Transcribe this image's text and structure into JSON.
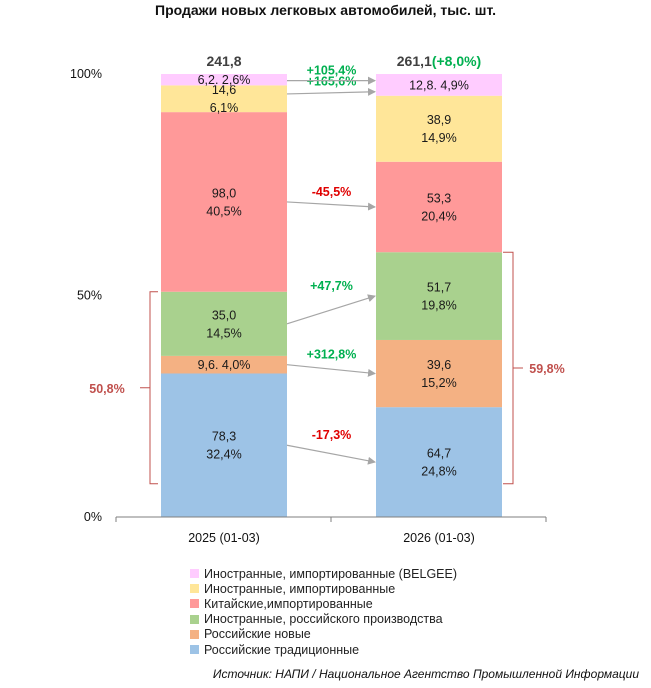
{
  "chart_data": {
    "type": "bar",
    "stacked": "percent",
    "title": "Продажи новых легковых автомобилей, тыс. шт.",
    "categories": [
      "2025 (01-03)",
      "2026 (01-03)"
    ],
    "yticks": [
      "0%",
      "50%",
      "100%"
    ],
    "ylim": [
      0,
      100
    ],
    "totals": [
      {
        "value": "241,8"
      },
      {
        "value": "261,1",
        "change": "(+8,0%)"
      }
    ],
    "series": [
      {
        "name": "Российские традиционные",
        "color": "#9DC3E6",
        "values": [
          78.3,
          64.7
        ],
        "shares": [
          32.4,
          24.8
        ],
        "labels": [
          [
            "78,3",
            "32,4%"
          ],
          [
            "64,7",
            "24,8%"
          ]
        ],
        "change": "-17,3%",
        "change_color": "#E00000"
      },
      {
        "name": "Российские новые",
        "color": "#F4B183",
        "values": [
          9.6,
          39.6
        ],
        "shares": [
          4.0,
          15.2
        ],
        "labels": [
          [
            "9,6. 4,0%"
          ],
          [
            "39,6",
            "15,2%"
          ]
        ],
        "change": "+312,8%",
        "change_color": "#00B050"
      },
      {
        "name": "Иностранные, российского производства",
        "color": "#A9D18E",
        "values": [
          35.0,
          51.7
        ],
        "shares": [
          14.5,
          19.8
        ],
        "labels": [
          [
            "35,0",
            "14,5%"
          ],
          [
            "51,7",
            "19,8%"
          ]
        ],
        "change": "+47,7%",
        "change_color": "#00B050"
      },
      {
        "name": "Китайские,импортированные",
        "color": "#FF9999",
        "values": [
          98.0,
          53.3
        ],
        "shares": [
          40.5,
          20.4
        ],
        "labels": [
          [
            "98,0",
            "40,5%"
          ],
          [
            "53,3",
            "20,4%"
          ]
        ],
        "change": "-45,5%",
        "change_color": "#E00000"
      },
      {
        "name": "Иностранные, импортированные",
        "color": "#FFE699",
        "values": [
          14.6,
          38.9
        ],
        "shares": [
          6.1,
          14.9
        ],
        "labels": [
          [
            "14,6",
            "6,1%"
          ],
          [
            "38,9",
            "14,9%"
          ]
        ],
        "change": "+165,6%",
        "change_color": "#00B050"
      },
      {
        "name": "Иностранные, импортированные (BELGEE)",
        "color": "#FFCCFF",
        "values": [
          6.2,
          12.8
        ],
        "shares": [
          2.6,
          4.9
        ],
        "labels": [
          [
            "6,2. 2,6%"
          ],
          [
            "12,8. 4,9%"
          ]
        ],
        "change": "+105,4%",
        "change_color": "#00B050"
      }
    ],
    "bracket_labels": [
      "50,8%",
      "59,8%"
    ],
    "bracket_color": "#C0504D",
    "grid": false,
    "legend_position": "bottom"
  },
  "source": "Источник: НАПИ / Национальное Агентство Промышленной Информации"
}
